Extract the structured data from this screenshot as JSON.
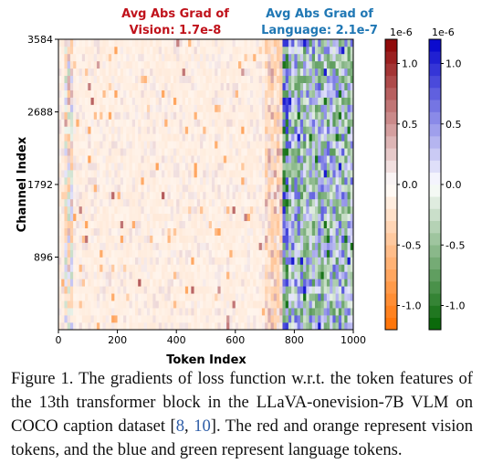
{
  "chart_data": {
    "type": "heatmap",
    "xlabel": "Token Index",
    "ylabel": "Channel Index",
    "xlim": [
      0,
      1000
    ],
    "ylim": [
      0,
      3584
    ],
    "x_ticks": [
      "0",
      "200",
      "400",
      "600",
      "800",
      "1000"
    ],
    "x_tick_values": [
      0,
      200,
      400,
      600,
      800,
      1000
    ],
    "y_ticks": [
      "896",
      "1792",
      "2688",
      "3584"
    ],
    "y_tick_values": [
      896,
      1792,
      2688,
      3584
    ],
    "vision_token_range": [
      0,
      760
    ],
    "language_token_range": [
      760,
      1000
    ],
    "annotations": {
      "vision": [
        "Avg Abs Grad of",
        "Vision: 1.7e-8"
      ],
      "language": [
        "Avg Abs Grad of",
        "Language: 2.1e-7"
      ]
    },
    "colorbars": [
      {
        "name": "vision",
        "scale": "1e-6",
        "ticks": [
          "1.0",
          "0.5",
          "0.0",
          "-0.5",
          "-1.0"
        ],
        "tick_values": [
          1.0,
          0.5,
          0.0,
          -0.5,
          -1.0
        ],
        "range": [
          -1.2,
          1.2
        ],
        "positive_color": "#8b0000",
        "negative_color": "#ff7000"
      },
      {
        "name": "language",
        "scale": "1e-6",
        "ticks": [
          "1.0",
          "0.5",
          "0.0",
          "-0.5",
          "-1.0"
        ],
        "tick_values": [
          1.0,
          0.5,
          0.0,
          -0.5,
          -1.0
        ],
        "range": [
          -1.2,
          1.2
        ],
        "positive_color": "#0000cc",
        "negative_color": "#006400"
      }
    ]
  },
  "caption": {
    "prefix": "Figure 1. The gradients of loss function w.r.t. the token features of the 13th transformer block in the LLaVA-onevision-7B VLM on COCO caption dataset [",
    "ref1": "8",
    "sep": ", ",
    "ref2": "10",
    "suffix": "]. The red and orange represent vision tokens, and the blue and green represent language tokens."
  }
}
